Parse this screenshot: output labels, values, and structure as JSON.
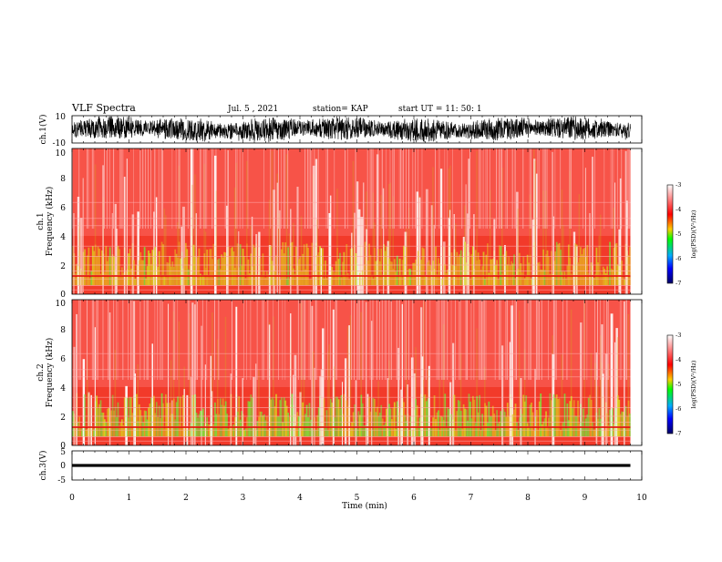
{
  "header": {
    "title": "VLF Spectra",
    "date": "Jul. 5 , 2021",
    "station": "station= KAP",
    "start_ut": "start UT =  11: 50: 1"
  },
  "colors": {
    "background": "#ffffff",
    "frame": "#000000",
    "waveform": "#000000"
  },
  "chart_data": [
    {
      "type": "line",
      "name": "ch.1 waveform",
      "ylabel": "ch.1(V)",
      "ylim": [
        -10,
        10
      ],
      "yticks": [
        "10",
        "-10"
      ],
      "xlim": [
        0,
        10
      ],
      "description_values": {
        "typical_range": [
          -8,
          8
        ]
      }
    },
    {
      "type": "heatmap",
      "name": "ch.1 spectrogram",
      "ylabel": "ch.1\nFrequency (kHz)",
      "ylabel_lines": [
        "ch.1",
        "Frequency (kHz)"
      ],
      "ylim": [
        0,
        10
      ],
      "yticks": [
        "0",
        "2",
        "4",
        "6",
        "8",
        "10"
      ],
      "xlim": [
        0,
        10
      ],
      "data_end_min": 9.8,
      "colorbar": {
        "label": "log(PSD)(V²/Hz)",
        "range": [
          -7,
          -3
        ],
        "ticks": [
          "-3",
          "-4",
          "-5",
          "-6",
          "-7"
        ]
      }
    },
    {
      "type": "heatmap",
      "name": "ch.2 spectrogram",
      "ylabel": "ch.2\nFrequency (kHz)",
      "ylabel_lines": [
        "ch.2",
        "Frequency (kHz)"
      ],
      "ylim": [
        0,
        10
      ],
      "yticks": [
        "0",
        "2",
        "4",
        "6",
        "8",
        "10"
      ],
      "xlim": [
        0,
        10
      ],
      "data_end_min": 9.8,
      "colorbar": {
        "label": "log(PSD)(V²/Hz)",
        "range": [
          -7,
          -3
        ],
        "ticks": [
          "-3",
          "-4",
          "-5",
          "-6",
          "-7"
        ]
      }
    },
    {
      "type": "line",
      "name": "ch.3 waveform",
      "ylabel": "ch.3(V)",
      "ylim": [
        -5,
        5
      ],
      "yticks": [
        "5",
        "0",
        "-5"
      ],
      "xlim": [
        0,
        10
      ],
      "description_values": {
        "typical_range": [
          -0.5,
          0.5
        ]
      }
    }
  ],
  "xaxis": {
    "label": "Time (min)",
    "ticks": [
      "0",
      "1",
      "2",
      "3",
      "4",
      "5",
      "6",
      "7",
      "8",
      "9",
      "10"
    ]
  }
}
